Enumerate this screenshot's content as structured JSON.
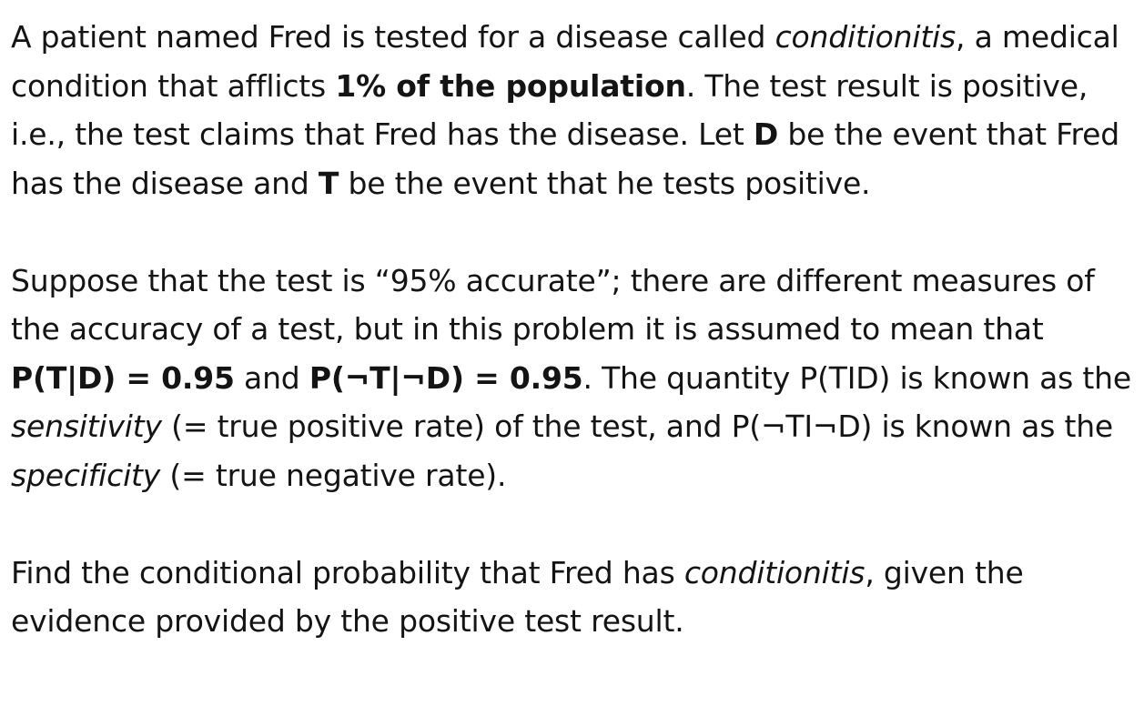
{
  "paragraphs": [
    [
      {
        "text": "A patient named Fred is tested for a disease called ",
        "style": "normal"
      },
      {
        "text": "conditionitis",
        "style": "italic"
      },
      {
        "text": ", a medical condition that afflicts ",
        "style": "normal"
      },
      {
        "text": "1% of the population",
        "style": "bold"
      },
      {
        "text": ". The test result is positive, i.e., the test claims that Fred has the disease. Let ",
        "style": "normal"
      },
      {
        "text": "D",
        "style": "bold"
      },
      {
        "text": " be the event that Fred has the disease and ",
        "style": "normal"
      },
      {
        "text": "T",
        "style": "bold"
      },
      {
        "text": " be the event that he tests positive.",
        "style": "normal"
      }
    ],
    [
      {
        "text": "Suppose that the test is “95% accurate”; there are different measures of the accuracy of a test, but in this problem it is assumed to mean that ",
        "style": "normal"
      },
      {
        "text": "P(T|D) = 0.95",
        "style": "bold"
      },
      {
        "text": " and ",
        "style": "normal"
      },
      {
        "text": "P(¬T|¬D) = 0.95",
        "style": "bold"
      },
      {
        "text": ". The quantity P(TID) is known as the ",
        "style": "normal"
      },
      {
        "text": "sensitivity",
        "style": "italic"
      },
      {
        "text": " (= true positive rate) of the test, and P(¬TI¬D) is known as the ",
        "style": "normal"
      },
      {
        "text": "specificity",
        "style": "italic"
      },
      {
        "text": " (= true negative rate).",
        "style": "normal"
      }
    ],
    [
      {
        "text": "Find the conditional probability that Fred has ",
        "style": "normal"
      },
      {
        "text": "conditionitis",
        "style": "italic"
      },
      {
        "text": ", given the evidence provided by the positive test result.",
        "style": "normal"
      }
    ]
  ]
}
